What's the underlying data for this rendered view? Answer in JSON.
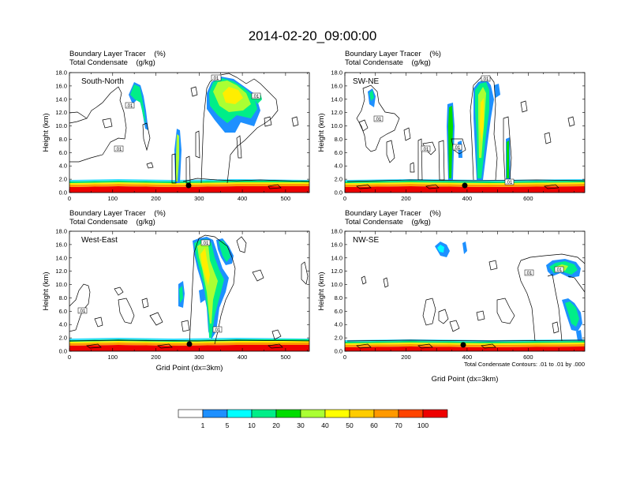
{
  "title": "2014-02-20_09:00:00",
  "colorbar": {
    "labels": [
      "1",
      "5",
      "10",
      "20",
      "30",
      "40",
      "50",
      "60",
      "70",
      "100"
    ],
    "colors": [
      "#ffffff",
      "#1e90ff",
      "#00ffff",
      "#00ee88",
      "#00dd00",
      "#aaff33",
      "#ffff00",
      "#ffcc00",
      "#ff9900",
      "#ff4400",
      "#ee0000"
    ]
  },
  "contour_note": "Total Condensate Contours: .01 to .01 by .000",
  "chart_data": [
    {
      "type": "heatmap",
      "panel": "South-North",
      "header_line1": "Boundary Layer Tracer    (%)",
      "header_line2": "Total Condensate    (g/kg)",
      "ylabel": "Height (km)",
      "xlabel": "",
      "xlim": [
        0,
        555
      ],
      "ylim": [
        0,
        18
      ],
      "xticks": [
        "0",
        "100",
        "200",
        "300",
        "400",
        "500"
      ],
      "yticks": [
        "0.0",
        "2.0",
        "4.0",
        "6.0",
        "8.0",
        "10.0",
        "12.0",
        "14.0",
        "16.0",
        "18.0"
      ],
      "contour_labels": [
        ".01",
        ".01",
        ".01",
        ".01"
      ],
      "boundary_layer_top_km": 1.2,
      "tracer_plumes": [
        {
          "x_range": [
            130,
            180
          ],
          "z_range": [
            11,
            16
          ],
          "peak_percent": 30
        },
        {
          "x_range": [
            245,
            255
          ],
          "z_range": [
            1,
            8
          ],
          "peak_percent": 40
        },
        {
          "x_range": [
            310,
            430
          ],
          "z_range": [
            9,
            17
          ],
          "peak_percent": 50
        }
      ]
    },
    {
      "type": "heatmap",
      "panel": "SW-NE",
      "header_line1": "Boundary Layer Tracer    (%)",
      "header_line2": "Total Condensate    (g/kg)",
      "ylabel": "Height (km)",
      "xlabel": "",
      "xlim": [
        0,
        785
      ],
      "ylim": [
        0,
        18
      ],
      "xticks": [
        "0",
        "200",
        "400",
        "600"
      ],
      "yticks": [
        "0.0",
        "2.0",
        "4.0",
        "6.0",
        "8.0",
        "10.0",
        "12.0",
        "14.0",
        "16.0",
        "18.0"
      ],
      "contour_labels": [
        ".01",
        ".01",
        ".01",
        ".01",
        ".01"
      ],
      "boundary_layer_top_km": 1.3,
      "tracer_plumes": [
        {
          "x_range": [
            150,
            180
          ],
          "z_range": [
            12,
            16
          ],
          "peak_percent": 30
        },
        {
          "x_range": [
            355,
            370
          ],
          "z_range": [
            2,
            13
          ],
          "peak_percent": 30
        },
        {
          "x_range": [
            420,
            495
          ],
          "z_range": [
            1,
            16
          ],
          "peak_percent": 60
        },
        {
          "x_range": [
            555,
            570
          ],
          "z_range": [
            1,
            10
          ],
          "peak_percent": 30
        }
      ]
    },
    {
      "type": "heatmap",
      "panel": "West-East",
      "header_line1": "Boundary Layer Tracer    (%)",
      "header_line2": "Total Condensate    (g/kg)",
      "ylabel": "Height (km)",
      "xlabel": "Grid Point (dx=3km)",
      "xlim": [
        0,
        555
      ],
      "ylim": [
        0,
        18
      ],
      "xticks": [
        "0",
        "100",
        "200",
        "300",
        "400",
        "500"
      ],
      "yticks": [
        "0.0",
        "2.0",
        "4.0",
        "6.0",
        "8.0",
        "10.0",
        "12.0",
        "14.0",
        "16.0",
        "18.0"
      ],
      "contour_labels": [
        ".01",
        ".01",
        ".01"
      ],
      "boundary_layer_top_km": 1.3,
      "tracer_plumes": [
        {
          "x_range": [
            255,
            285
          ],
          "z_range": [
            7,
            10
          ],
          "peak_percent": 20
        },
        {
          "x_range": [
            290,
            345
          ],
          "z_range": [
            1,
            17
          ],
          "peak_percent": 50
        },
        {
          "x_range": [
            345,
            375
          ],
          "z_range": [
            12,
            16
          ],
          "peak_percent": 20
        }
      ]
    },
    {
      "type": "heatmap",
      "panel": "NW-SE",
      "header_line1": "Boundary Layer Tracer    (%)",
      "header_line2": "Total Condensate    (g/kg)",
      "ylabel": "Height (km)",
      "xlabel": "Grid Point (dx=3km)",
      "xlim": [
        0,
        785
      ],
      "ylim": [
        0,
        18
      ],
      "xticks": [
        "0",
        "200",
        "400",
        "600"
      ],
      "yticks": [
        "0.0",
        "2.0",
        "4.0",
        "6.0",
        "8.0",
        "10.0",
        "12.0",
        "14.0",
        "16.0",
        "18.0"
      ],
      "contour_labels": [
        ".01",
        ".01"
      ],
      "boundary_layer_top_km": 1.0,
      "tracer_plumes": [
        {
          "x_range": [
            310,
            360
          ],
          "z_range": [
            14,
            16.5
          ],
          "peak_percent": 10
        },
        {
          "x_range": [
            650,
            785
          ],
          "z_range": [
            1,
            13.5
          ],
          "peak_percent": 30
        }
      ]
    }
  ]
}
